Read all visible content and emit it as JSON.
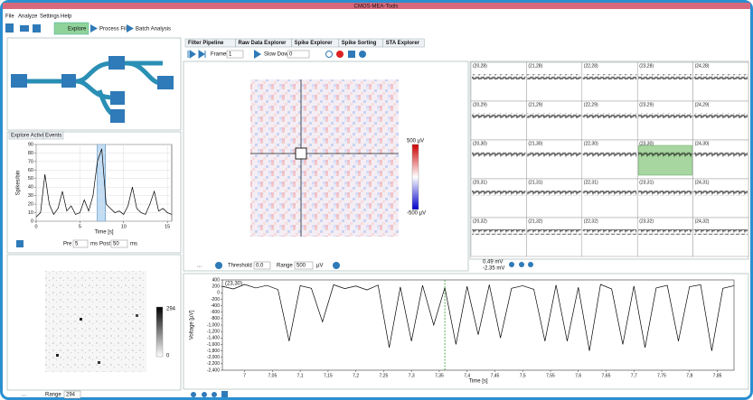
{
  "window": {
    "title": "CMOS-MEA-Tools"
  },
  "menu": [
    "File",
    "Analyze",
    "Settings",
    "Help"
  ],
  "toolbar": [
    "Explore",
    "Process File",
    "Batch Analysis"
  ],
  "left_tabs": [
    "Explore Activity",
    "Events"
  ],
  "activity_chart": {
    "type": "line",
    "xlabel": "Time [s]",
    "ylabel": "Spikes/bin",
    "color": "#000000",
    "xlim": [
      0,
      15.5
    ],
    "ylim": [
      0,
      90
    ],
    "xticks": [
      0,
      5,
      10,
      15
    ],
    "yticks": [
      0,
      10,
      20,
      30,
      40,
      50,
      60,
      70,
      80,
      90
    ],
    "grid": true,
    "x": [
      0,
      0.5,
      1,
      1.5,
      2,
      2.5,
      3,
      3.5,
      4,
      4.5,
      5,
      5.5,
      6,
      6.5,
      7,
      7.5,
      8,
      8.5,
      9,
      9.5,
      10,
      10.5,
      11,
      11.5,
      12,
      12.5,
      13,
      13.5,
      14,
      14.5,
      15,
      15.5
    ],
    "values": [
      5,
      10,
      55,
      20,
      8,
      15,
      35,
      12,
      18,
      8,
      10,
      25,
      12,
      30,
      70,
      85,
      20,
      15,
      10,
      12,
      8,
      18,
      40,
      15,
      10,
      8,
      20,
      35,
      12,
      15,
      10,
      8
    ],
    "highlight": [
      7,
      7.9
    ]
  },
  "event_controls": {
    "pre_label": "Pre",
    "pre_value": "5",
    "pre_unit": "ms",
    "post_label": "Post",
    "post_value": "50",
    "post_unit": "ms"
  },
  "overview_map": {
    "colorbar_max": "294",
    "colorbar_min": "0",
    "more": "...",
    "range_label": "Range",
    "range_value": "294"
  },
  "tabs": [
    "Filter Pipeline",
    "Raw Data Explorer",
    "Spike Explorer",
    "Spike Sorting",
    "STA Explorer"
  ],
  "explorer_controls": {
    "frames_label": "Frames",
    "frames_value": "1",
    "slowdown_label": "Slow Down",
    "slowdown_value": "0"
  },
  "raw_map": {
    "colorbar_max": "500 µV",
    "colorbar_min": "-500 µV",
    "more": "...",
    "threshold_label": "Threshold",
    "threshold_value": "0.0",
    "range_label": "Range",
    "range_value": "500",
    "range_unit": "µV"
  },
  "channel_grid": {
    "labels": [
      [
        "(20,28)",
        "(21,28)",
        "(22,28)",
        "(23,28)",
        "(24,28)"
      ],
      [
        "(20,29)",
        "(21,29)",
        "(22,29)",
        "(23,29)",
        "(24,29)"
      ],
      [
        "(20,30)",
        "(21,30)",
        "(22,30)",
        "(23,30)",
        "(24,30)"
      ],
      [
        "(20,31)",
        "(21,31)",
        "(22,31)",
        "(23,31)",
        "(24,31)"
      ],
      [
        "(20,32)",
        "(21,32)",
        "(22,32)",
        "(23,32)",
        "(24,32)"
      ]
    ],
    "scale_max": "0.49 mV",
    "scale_min": "-2.35 mV"
  },
  "trace_chart": {
    "type": "line",
    "channel": "(23,30)",
    "xlabel": "Time [s]",
    "ylabel": "Voltage [µV]",
    "color": "#000000",
    "xlim": [
      6.96,
      7.88
    ],
    "ylim": [
      -2400,
      400
    ],
    "xticks": [
      7,
      {
        "value": 7.05,
        "label": "7,05"
      },
      {
        "value": 7.1,
        "label": "7,1"
      },
      {
        "value": 7.15,
        "label": "7,15"
      },
      {
        "value": 7.2,
        "label": "7,2"
      },
      {
        "value": 7.25,
        "label": "7,25"
      },
      {
        "value": 7.3,
        "label": "7,3"
      },
      {
        "value": 7.35,
        "label": "7,35"
      },
      {
        "value": 7.4,
        "label": "7,4"
      },
      {
        "value": 7.45,
        "label": "7,45"
      },
      {
        "value": 7.5,
        "label": "7,5"
      },
      {
        "value": 7.55,
        "label": "7,55"
      },
      {
        "value": 7.6,
        "label": "7,6"
      },
      {
        "value": 7.65,
        "label": "7,65"
      },
      {
        "value": 7.7,
        "label": "7,7"
      },
      {
        "value": 7.75,
        "label": "7,75"
      },
      {
        "value": 7.8,
        "label": "7,8"
      },
      {
        "value": 7.85,
        "label": "7,85"
      }
    ],
    "yticks": [
      400,
      200,
      0,
      -200,
      -400,
      -600,
      -800,
      {
        "value": -1000,
        "label": "-1,000"
      },
      {
        "value": -1200,
        "label": "-1,200"
      },
      {
        "value": -1400,
        "label": "-1,400"
      },
      {
        "value": -1600,
        "label": "-1,600"
      },
      {
        "value": -1800,
        "label": "-1,800"
      },
      {
        "value": -2000,
        "label": "-2,000"
      },
      {
        "value": -2200,
        "label": "-2,200"
      },
      {
        "value": -2400,
        "label": "-2,400"
      }
    ],
    "x": [
      6.96,
      6.98,
      7,
      7.02,
      7.04,
      7.06,
      7.08,
      7.1,
      7.12,
      7.14,
      7.16,
      7.18,
      7.2,
      7.22,
      7.24,
      7.26,
      7.28,
      7.3,
      7.32,
      7.34,
      7.36,
      7.38,
      7.4,
      7.42,
      7.44,
      7.46,
      7.48,
      7.5,
      7.52,
      7.54,
      7.56,
      7.58,
      7.6,
      7.62,
      7.64,
      7.66,
      7.68,
      7.7,
      7.72,
      7.74,
      7.76,
      7.78,
      7.8,
      7.82,
      7.84,
      7.86,
      7.88
    ],
    "values": [
      200,
      120,
      260,
      150,
      230,
      100,
      -1500,
      220,
      140,
      -900,
      250,
      130,
      210,
      90,
      240,
      -1700,
      180,
      -1500,
      230,
      -1000,
      160,
      -1600,
      200,
      -1300,
      250,
      -1400,
      140,
      220,
      110,
      -1500,
      240,
      -1500,
      170,
      -1800,
      260,
      120,
      -1600,
      210,
      -1700,
      150,
      230,
      -1500,
      190,
      250,
      -1800,
      140,
      220
    ],
    "marker_x": 7.36
  }
}
